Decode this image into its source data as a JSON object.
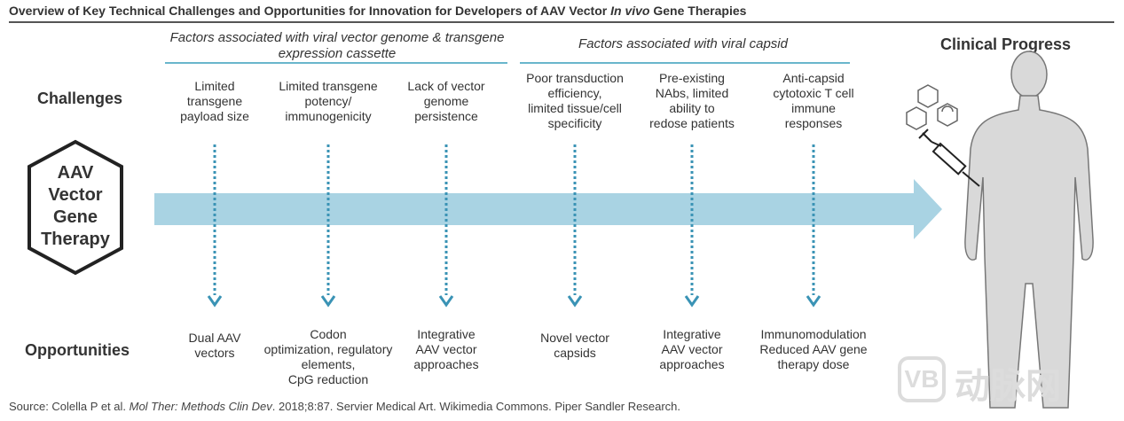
{
  "title": "Overview of Key Technical Challenges and Opportunities for Innovation for Developers of AAV Vector In vivo Gene Therapies",
  "groups": {
    "genome": "Factors associated with viral vector genome & transgene expression cassette",
    "capsid": "Factors associated with viral capsid"
  },
  "row_labels": {
    "challenges": "Challenges",
    "opportunities": "Opportunities"
  },
  "center": {
    "line1": "AAV",
    "line2": "Vector",
    "line3": "Gene",
    "line4": "Therapy"
  },
  "clinical_progress": "Clinical Progress",
  "challenges": [
    {
      "l1": "Limited",
      "l2": "transgene",
      "l3": "payload size",
      "l4": ""
    },
    {
      "l1": "Limited transgene",
      "l2": "potency/",
      "l3": "immunogenicity",
      "l4": ""
    },
    {
      "l1": "Lack of vector",
      "l2": "genome",
      "l3": "persistence",
      "l4": ""
    },
    {
      "l1": "Poor transduction",
      "l2": "efficiency,",
      "l3": "limited tissue/cell",
      "l4": "specificity"
    },
    {
      "l1": "Pre-existing",
      "l2": "NAbs, limited",
      "l3": "ability to",
      "l4": "redose patients"
    },
    {
      "l1": "Anti-capsid",
      "l2": "cytotoxic T cell",
      "l3": "immune",
      "l4": "responses"
    }
  ],
  "opportunities": [
    {
      "l1": "Dual AAV",
      "l2": "vectors",
      "l3": "",
      "l4": ""
    },
    {
      "l1": "Codon",
      "l2": "optimization, regulatory",
      "l3": "elements,",
      "l4": "CpG reduction"
    },
    {
      "l1": "Integrative",
      "l2": "AAV vector",
      "l3": "approaches",
      "l4": ""
    },
    {
      "l1": "Novel vector",
      "l2": "capsids",
      "l3": "",
      "l4": ""
    },
    {
      "l1": "Integrative",
      "l2": "AAV vector",
      "l3": "approaches",
      "l4": ""
    },
    {
      "l1": "Immunomodulation",
      "l2": "Reduced AAV gene",
      "l3": "therapy dose",
      "l4": ""
    }
  ],
  "source": {
    "prefix": "Source: Colella P et al. ",
    "journal": "Mol Ther: Methods Clin Dev",
    "suffix": ". 2018;8:87. Servier Medical Art. Wikimedia Commons. Piper Sandler Research."
  },
  "watermark": {
    "logo": "VB",
    "text": "动脉网"
  },
  "colors": {
    "arrow": "#a9d3e3",
    "dotted": "#3a93b5",
    "rule": "#69b6cc",
    "body": "#d9d9d9"
  }
}
